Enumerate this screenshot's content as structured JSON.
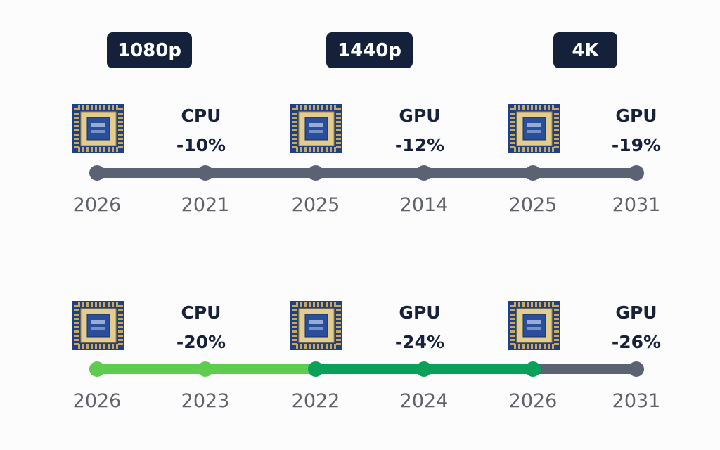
{
  "resolutions": [
    "1080p",
    "1440p",
    "4K"
  ],
  "rows": [
    {
      "stages": [
        {
          "label": "CPU",
          "change": "-10%"
        },
        {
          "label": "GPU",
          "change": "-12%"
        },
        {
          "label": "GPU",
          "change": "-19%"
        }
      ],
      "years": [
        "2026",
        "2021",
        "2025",
        "2014",
        "2025",
        "2031"
      ],
      "segment_colors": [
        "#5a6273",
        "#5a6273",
        "#5a6273",
        "#5a6273",
        "#5a6273"
      ],
      "dot_colors": [
        "#5a6273",
        "#5a6273",
        "#5a6273",
        "#5a6273",
        "#5a6273",
        "#5a6273"
      ]
    },
    {
      "stages": [
        {
          "label": "CPU",
          "change": "-20%"
        },
        {
          "label": "GPU",
          "change": "-24%"
        },
        {
          "label": "GPU",
          "change": "-26%"
        }
      ],
      "years": [
        "2026",
        "2023",
        "2022",
        "2024",
        "2026",
        "2031"
      ],
      "segment_colors": [
        "#5ecc4f",
        "#5ecc4f",
        "#0ba05a",
        "#0ba05a",
        "#5a6273"
      ],
      "dot_colors": [
        "#5ecc4f",
        "#5ecc4f",
        "#0ba05a",
        "#0ba05a",
        "#0ba05a",
        "#5a6273"
      ]
    }
  ],
  "icons": {
    "stage": "processor-chip-icon"
  }
}
